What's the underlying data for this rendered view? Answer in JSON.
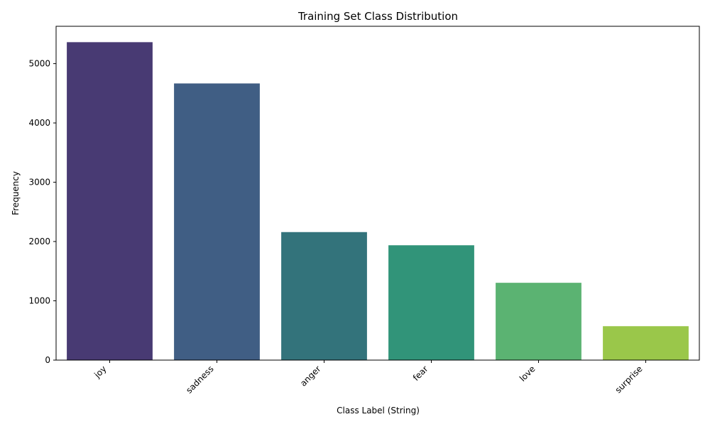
{
  "chart_data": {
    "type": "bar",
    "title": "Training Set Class Distribution",
    "xlabel": "Class Label (String)",
    "ylabel": "Frequency",
    "categories": [
      "joy",
      "sadness",
      "anger",
      "fear",
      "love",
      "surprise"
    ],
    "values": [
      5362,
      4666,
      2159,
      1937,
      1304,
      572
    ],
    "colors": [
      "#483a73",
      "#405e84",
      "#33737b",
      "#319479",
      "#5bb372",
      "#9ac74a"
    ],
    "ylim": [
      0,
      5630
    ],
    "yticks": [
      0,
      1000,
      2000,
      3000,
      4000,
      5000
    ],
    "ytick_labels": [
      "0",
      "1000",
      "2000",
      "3000",
      "4000",
      "5000"
    ],
    "grid": false,
    "legend": "none"
  }
}
